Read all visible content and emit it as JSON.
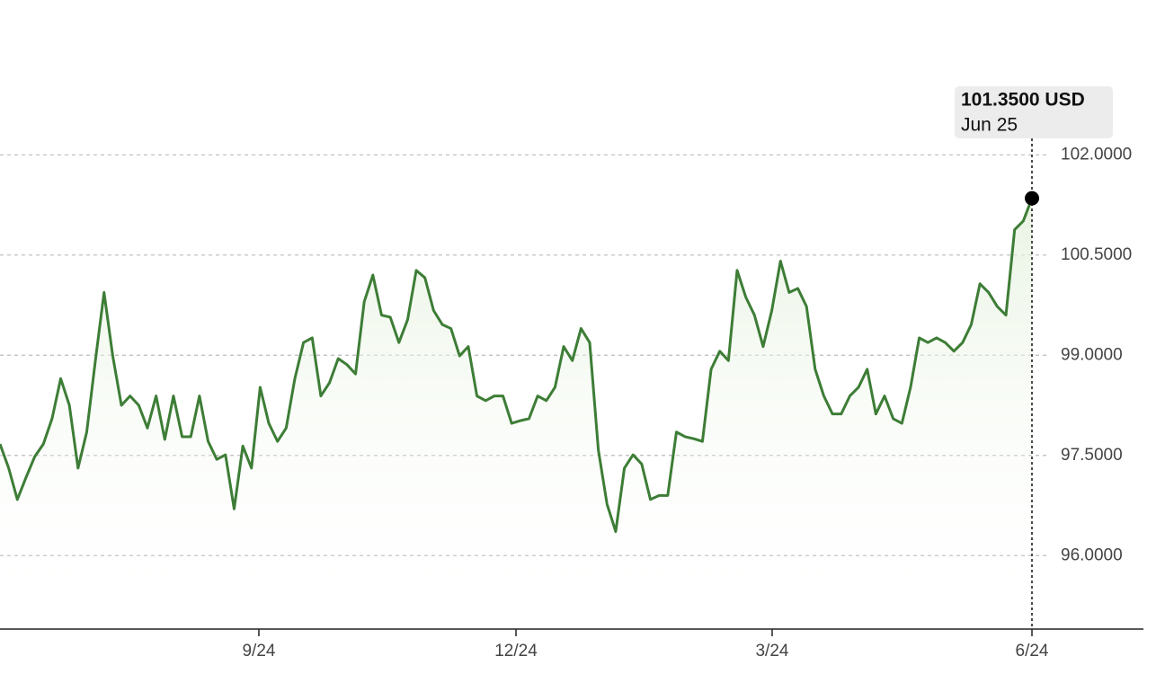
{
  "chart_data": {
    "type": "line",
    "series": [
      {
        "color": "#3d7d36",
        "values": [
          97.67,
          97.31,
          96.84,
          97.17,
          97.48,
          97.67,
          98.05,
          98.65,
          98.25,
          97.31,
          97.85,
          98.92,
          99.94,
          98.99,
          98.25,
          98.39,
          98.25,
          97.91,
          98.39,
          97.74,
          98.39,
          97.78,
          97.78,
          98.39,
          97.71,
          97.44,
          97.51,
          96.7,
          97.64,
          97.31,
          98.52,
          97.98,
          97.71,
          97.91,
          98.65,
          99.19,
          99.26,
          98.39,
          98.59,
          98.95,
          98.86,
          98.72,
          99.8,
          100.2,
          99.6,
          99.57,
          99.19,
          99.53,
          100.27,
          100.16,
          99.67,
          99.46,
          99.4,
          98.99,
          99.13,
          98.39,
          98.32,
          98.39,
          98.39,
          97.98,
          98.02,
          98.05,
          98.39,
          98.32,
          98.52,
          99.13,
          98.92,
          99.4,
          99.19,
          97.58,
          96.77,
          96.36,
          97.31,
          97.51,
          97.37,
          96.84,
          96.9,
          96.9,
          97.85,
          97.78,
          97.75,
          97.71,
          98.79,
          99.06,
          98.92,
          100.27,
          99.87,
          99.6,
          99.13,
          99.67,
          100.41,
          99.94,
          100.0,
          99.73,
          98.79,
          98.39,
          98.12,
          98.12,
          98.39,
          98.52,
          98.79,
          98.12,
          98.39,
          98.05,
          97.98,
          98.52,
          99.26,
          99.19,
          99.26,
          99.19,
          99.06,
          99.19,
          99.46,
          100.07,
          99.94,
          99.73,
          99.6,
          100.88,
          101.01,
          101.35
        ]
      }
    ],
    "xlim": [
      0,
      119
    ],
    "xticks": [
      {
        "value": 29.85,
        "label": "9/24"
      },
      {
        "value": 59.5,
        "label": "12/24"
      },
      {
        "value": 89.04,
        "label": "3/24"
      },
      {
        "value": 119,
        "label": "6/24"
      }
    ],
    "ylim": [
      94.9,
      103.0
    ],
    "yticks": [
      {
        "value": 96,
        "label": "96.0000"
      },
      {
        "value": 97.5,
        "label": "97.5000"
      },
      {
        "value": 99,
        "label": "99.0000"
      },
      {
        "value": 100.5,
        "label": "100.5000"
      },
      {
        "value": 102,
        "label": "102.0000"
      }
    ],
    "grid": true,
    "annotation": {
      "value": 101.35,
      "label": "101.3500 USD",
      "date": "Jun 25"
    }
  }
}
